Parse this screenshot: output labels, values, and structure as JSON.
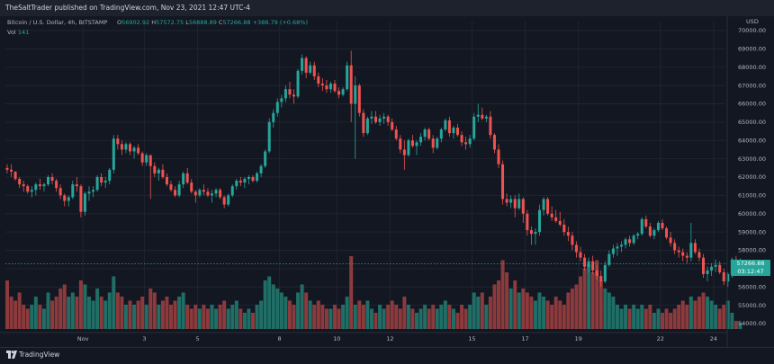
{
  "header": {
    "publish_line": "TheSaltTrader published on TradingView.com, Nov 23, 2021 12:47 UTC-4"
  },
  "legend": {
    "symbol": "Bitcoin / U.S. Dollar, 4h, BITSTAMP",
    "open_key": "O",
    "open": "56902.92",
    "high_key": "H",
    "high": "57572.75",
    "low_key": "L",
    "low": "56888.89",
    "close_key": "C",
    "close": "57266.88",
    "change": "+388.79 (+0.68%)",
    "vol_key": "Vol",
    "vol": "141"
  },
  "price_axis": {
    "currency": "USD",
    "last_price": "57266.88",
    "countdown": "03:12:47"
  },
  "footer": {
    "brand": "TradingView"
  },
  "colors": {
    "background": "#131722",
    "up": "#26a69a",
    "down": "#ef5350",
    "up_volume": "#1f6f67",
    "down_volume": "#8c3a3c",
    "grid": "#1f2430",
    "axis_text": "#b2b5be"
  },
  "chart_data": {
    "type": "candlestick",
    "timeframe": "4h",
    "ylim": [
      54000,
      70000
    ],
    "y_ticks": [
      "54000.00",
      "55000.00",
      "56000.00",
      "57000.00",
      "58000.00",
      "59000.00",
      "60000.00",
      "61000.00",
      "62000.00",
      "63000.00",
      "64000.00",
      "65000.00",
      "66000.00",
      "67000.00",
      "68000.00",
      "69000.00",
      "70000.00"
    ],
    "x_ticks": [
      {
        "label": "Nov",
        "bar": 18.5
      },
      {
        "label": "3",
        "bar": 33.5
      },
      {
        "label": "5",
        "bar": 46.5
      },
      {
        "label": "8",
        "bar": 66.5
      },
      {
        "label": "10",
        "bar": 80.5
      },
      {
        "label": "12",
        "bar": 93.5
      },
      {
        "label": "15",
        "bar": 113.5
      },
      {
        "label": "17",
        "bar": 126.5
      },
      {
        "label": "19",
        "bar": 139.5
      },
      {
        "label": "22",
        "bar": 159.5
      },
      {
        "label": "24",
        "bar": 172.5
      }
    ],
    "grid": true,
    "candles": [
      [
        62500,
        62700,
        62200,
        62400,
        60
      ],
      [
        62400,
        62700,
        62000,
        62300,
        40
      ],
      [
        62300,
        62300,
        61800,
        61900,
        35
      ],
      [
        61900,
        62000,
        61400,
        61600,
        45
      ],
      [
        61600,
        61800,
        61200,
        61500,
        30
      ],
      [
        61500,
        61600,
        61100,
        61200,
        25
      ],
      [
        61200,
        61500,
        60900,
        61300,
        30
      ],
      [
        61300,
        61700,
        61000,
        61600,
        40
      ],
      [
        61600,
        61900,
        61300,
        61500,
        30
      ],
      [
        61500,
        61700,
        61200,
        61600,
        25
      ],
      [
        61600,
        62100,
        61500,
        62000,
        45
      ],
      [
        62000,
        62200,
        61600,
        61800,
        35
      ],
      [
        61800,
        61900,
        61200,
        61400,
        40
      ],
      [
        61400,
        61600,
        60800,
        61000,
        50
      ],
      [
        61000,
        61100,
        60400,
        60700,
        55
      ],
      [
        60700,
        61000,
        60400,
        60900,
        40
      ],
      [
        60900,
        61800,
        60800,
        61600,
        45
      ],
      [
        61600,
        62000,
        61200,
        61500,
        40
      ],
      [
        61500,
        61600,
        59800,
        60100,
        60
      ],
      [
        60100,
        61200,
        59900,
        61100,
        55
      ],
      [
        61100,
        61500,
        60700,
        61200,
        40
      ],
      [
        61200,
        61500,
        60900,
        61300,
        35
      ],
      [
        61300,
        62100,
        61200,
        62000,
        50
      ],
      [
        62000,
        62200,
        61500,
        61700,
        40
      ],
      [
        61700,
        62000,
        61400,
        61800,
        35
      ],
      [
        61800,
        62500,
        61600,
        62400,
        45
      ],
      [
        62400,
        64300,
        62200,
        64100,
        65
      ],
      [
        64100,
        64300,
        63500,
        63800,
        45
      ],
      [
        63800,
        64000,
        63200,
        63500,
        40
      ],
      [
        63500,
        63900,
        63300,
        63800,
        30
      ],
      [
        63800,
        63900,
        63200,
        63400,
        35
      ],
      [
        63400,
        63700,
        63000,
        63600,
        30
      ],
      [
        63600,
        63800,
        63200,
        63300,
        35
      ],
      [
        63300,
        63400,
        62600,
        62800,
        40
      ],
      [
        62800,
        63300,
        62600,
        63200,
        30
      ],
      [
        63200,
        63200,
        60800,
        62600,
        50
      ],
      [
        62600,
        62800,
        62000,
        62200,
        45
      ],
      [
        62200,
        62500,
        61800,
        62400,
        30
      ],
      [
        62400,
        62700,
        61900,
        62000,
        35
      ],
      [
        62000,
        62200,
        61500,
        61600,
        40
      ],
      [
        61600,
        61800,
        61200,
        61300,
        30
      ],
      [
        61300,
        61500,
        60900,
        61000,
        35
      ],
      [
        61000,
        61800,
        60900,
        61600,
        40
      ],
      [
        61600,
        62300,
        61400,
        62200,
        45
      ],
      [
        62200,
        62500,
        61600,
        61700,
        30
      ],
      [
        61700,
        61900,
        61100,
        61200,
        25
      ],
      [
        61200,
        61300,
        60600,
        61000,
        30
      ],
      [
        61000,
        61400,
        60900,
        61300,
        25
      ],
      [
        61300,
        61600,
        61000,
        61200,
        30
      ],
      [
        61200,
        61400,
        60900,
        61000,
        25
      ],
      [
        61000,
        61300,
        60600,
        61100,
        30
      ],
      [
        61100,
        61400,
        60900,
        61300,
        25
      ],
      [
        61300,
        61400,
        60800,
        60900,
        30
      ],
      [
        60900,
        61000,
        60300,
        60500,
        35
      ],
      [
        60500,
        61100,
        60400,
        61000,
        25
      ],
      [
        61000,
        61600,
        60900,
        61500,
        30
      ],
      [
        61500,
        61900,
        61300,
        61800,
        35
      ],
      [
        61800,
        62000,
        61500,
        61700,
        25
      ],
      [
        61700,
        62000,
        61400,
        61900,
        20
      ],
      [
        61900,
        62100,
        61600,
        62000,
        25
      ],
      [
        62000,
        62100,
        61700,
        61800,
        20
      ],
      [
        61800,
        62300,
        61700,
        62200,
        30
      ],
      [
        62200,
        62700,
        62000,
        62600,
        35
      ],
      [
        62600,
        63500,
        62500,
        63400,
        60
      ],
      [
        63400,
        65200,
        63300,
        65000,
        65
      ],
      [
        65000,
        65700,
        64700,
        65500,
        55
      ],
      [
        65500,
        66300,
        65300,
        66100,
        50
      ],
      [
        66100,
        66500,
        65800,
        66300,
        45
      ],
      [
        66300,
        67000,
        66100,
        66800,
        40
      ],
      [
        66800,
        67200,
        66300,
        66500,
        35
      ],
      [
        66500,
        66800,
        66000,
        66400,
        30
      ],
      [
        66400,
        67900,
        66300,
        67800,
        45
      ],
      [
        67800,
        68700,
        67600,
        68500,
        55
      ],
      [
        68500,
        68600,
        67400,
        67700,
        45
      ],
      [
        67700,
        68300,
        67600,
        68100,
        35
      ],
      [
        68100,
        68300,
        67300,
        67500,
        30
      ],
      [
        67500,
        67700,
        66900,
        67100,
        35
      ],
      [
        67100,
        67400,
        66700,
        67000,
        30
      ],
      [
        67000,
        67300,
        66600,
        66800,
        25
      ],
      [
        66800,
        67200,
        66600,
        67100,
        25
      ],
      [
        67100,
        67300,
        66600,
        66700,
        30
      ],
      [
        66700,
        66900,
        66300,
        66500,
        25
      ],
      [
        66500,
        66900,
        66400,
        66800,
        30
      ],
      [
        66800,
        68300,
        66700,
        68100,
        40
      ],
      [
        68100,
        68900,
        65000,
        66000,
        90
      ],
      [
        66000,
        67500,
        63000,
        67000,
        30
      ],
      [
        67000,
        67100,
        65300,
        65500,
        35
      ],
      [
        65500,
        65700,
        64200,
        64400,
        30
      ],
      [
        64400,
        65300,
        64300,
        65200,
        35
      ],
      [
        65200,
        65600,
        64900,
        65300,
        25
      ],
      [
        65300,
        65600,
        64900,
        65000,
        20
      ],
      [
        65000,
        65400,
        64800,
        65200,
        30
      ],
      [
        65200,
        65500,
        64900,
        65300,
        25
      ],
      [
        65300,
        65400,
        64800,
        65000,
        30
      ],
      [
        65000,
        65200,
        64500,
        64600,
        35
      ],
      [
        64600,
        64800,
        64000,
        64100,
        30
      ],
      [
        64100,
        64300,
        63300,
        63500,
        25
      ],
      [
        63500,
        64000,
        62400,
        63200,
        40
      ],
      [
        63200,
        64100,
        63100,
        64000,
        30
      ],
      [
        64000,
        64300,
        63600,
        63700,
        25
      ],
      [
        63700,
        64000,
        63200,
        63900,
        20
      ],
      [
        63900,
        64400,
        63700,
        64200,
        25
      ],
      [
        64200,
        64700,
        64000,
        64600,
        30
      ],
      [
        64600,
        64700,
        64000,
        64100,
        25
      ],
      [
        64100,
        64300,
        63300,
        63600,
        30
      ],
      [
        63600,
        64200,
        63500,
        64100,
        25
      ],
      [
        64100,
        64700,
        63900,
        64600,
        30
      ],
      [
        64600,
        65200,
        64500,
        65100,
        35
      ],
      [
        65100,
        65300,
        64200,
        64400,
        30
      ],
      [
        64400,
        64800,
        64100,
        64700,
        25
      ],
      [
        64700,
        64900,
        64200,
        64300,
        20
      ],
      [
        64300,
        64500,
        63700,
        63900,
        30
      ],
      [
        63900,
        64200,
        63500,
        63800,
        25
      ],
      [
        63800,
        64300,
        63600,
        64100,
        30
      ],
      [
        64100,
        65500,
        64000,
        65300,
        45
      ],
      [
        65300,
        66000,
        65000,
        65400,
        40
      ],
      [
        65400,
        65800,
        65100,
        65200,
        45
      ],
      [
        65200,
        65400,
        65000,
        65300,
        30
      ],
      [
        65300,
        65600,
        64100,
        64300,
        40
      ],
      [
        64300,
        64400,
        63300,
        63500,
        55
      ],
      [
        63500,
        63800,
        62500,
        62700,
        60
      ],
      [
        62700,
        62900,
        60500,
        60800,
        85
      ],
      [
        60800,
        61100,
        60400,
        60600,
        70
      ],
      [
        60600,
        61000,
        60300,
        60800,
        50
      ],
      [
        60800,
        61000,
        59800,
        60300,
        60
      ],
      [
        60300,
        61100,
        60200,
        60800,
        45
      ],
      [
        60800,
        60900,
        59500,
        60000,
        50
      ],
      [
        60000,
        60200,
        58800,
        59100,
        45
      ],
      [
        59100,
        59300,
        58300,
        58900,
        40
      ],
      [
        58900,
        59200,
        58300,
        59000,
        35
      ],
      [
        59000,
        60500,
        58800,
        60200,
        45
      ],
      [
        60200,
        60900,
        59900,
        60800,
        40
      ],
      [
        60800,
        60900,
        59900,
        60000,
        35
      ],
      [
        60000,
        60400,
        59600,
        59800,
        30
      ],
      [
        59800,
        60200,
        59500,
        59600,
        40
      ],
      [
        59600,
        60100,
        59300,
        59400,
        35
      ],
      [
        59400,
        59700,
        58800,
        59000,
        30
      ],
      [
        59000,
        59300,
        58500,
        58800,
        45
      ],
      [
        58800,
        59000,
        58000,
        58300,
        50
      ],
      [
        58300,
        58500,
        57600,
        57900,
        55
      ],
      [
        57900,
        58200,
        57400,
        57600,
        65
      ],
      [
        57600,
        57800,
        56900,
        57100,
        75
      ],
      [
        57100,
        57600,
        56800,
        57400,
        80
      ],
      [
        57400,
        57700,
        56700,
        56900,
        70
      ],
      [
        56900,
        57200,
        56400,
        56600,
        85
      ],
      [
        56600,
        56900,
        56000,
        56300,
        60
      ],
      [
        56300,
        57400,
        56200,
        57200,
        50
      ],
      [
        57200,
        58000,
        57100,
        57800,
        45
      ],
      [
        57800,
        58300,
        57600,
        58100,
        40
      ],
      [
        58100,
        58400,
        57700,
        58200,
        30
      ],
      [
        58200,
        58500,
        57900,
        58300,
        25
      ],
      [
        58300,
        58700,
        58100,
        58600,
        30
      ],
      [
        58600,
        58800,
        58200,
        58400,
        25
      ],
      [
        58400,
        58900,
        58300,
        58800,
        30
      ],
      [
        58800,
        59000,
        58600,
        58900,
        25
      ],
      [
        58900,
        59800,
        58800,
        59700,
        30
      ],
      [
        59700,
        59900,
        59200,
        59300,
        25
      ],
      [
        59300,
        59500,
        58700,
        58800,
        30
      ],
      [
        58800,
        59200,
        58600,
        59100,
        20
      ],
      [
        59100,
        59600,
        59000,
        59500,
        25
      ],
      [
        59500,
        59700,
        59100,
        59200,
        20
      ],
      [
        59200,
        59300,
        58600,
        58700,
        25
      ],
      [
        58700,
        59000,
        58200,
        58400,
        20
      ],
      [
        58400,
        58600,
        57800,
        58000,
        25
      ],
      [
        58000,
        58200,
        57600,
        57900,
        30
      ],
      [
        57900,
        58100,
        57400,
        57700,
        35
      ],
      [
        57700,
        57900,
        57300,
        57600,
        30
      ],
      [
        57600,
        59500,
        57400,
        58400,
        40
      ],
      [
        58400,
        58600,
        57800,
        57900,
        35
      ],
      [
        57900,
        58100,
        57400,
        57600,
        40
      ],
      [
        57600,
        57800,
        56500,
        56700,
        45
      ],
      [
        56700,
        57100,
        56300,
        56900,
        40
      ],
      [
        56900,
        57300,
        56600,
        57100,
        35
      ],
      [
        57100,
        57500,
        56800,
        57200,
        30
      ],
      [
        57200,
        57400,
        56700,
        56800,
        25
      ],
      [
        56800,
        57000,
        56100,
        56300,
        30
      ],
      [
        56300,
        56800,
        56000,
        56700,
        35
      ],
      [
        56700,
        57600,
        56500,
        57500,
        20
      ],
      [
        57500,
        57700,
        56800,
        56900,
        10
      ],
      [
        56900,
        57570,
        56880,
        57270,
        8
      ]
    ]
  }
}
